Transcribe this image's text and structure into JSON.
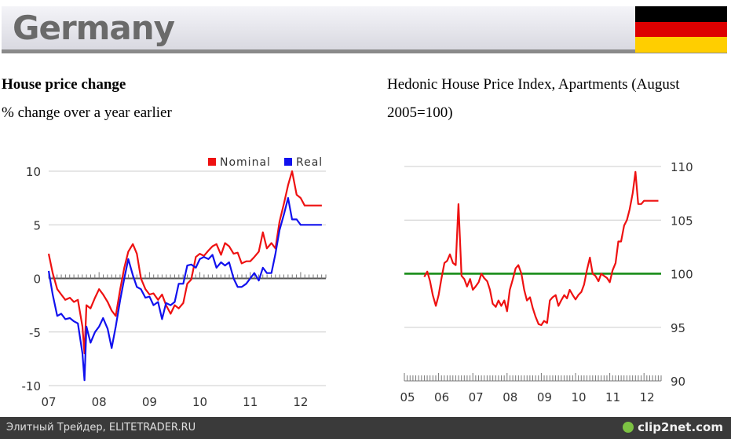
{
  "header": {
    "title": "Germany"
  },
  "flag_colors": [
    "#000000",
    "#dd0000",
    "#ffce00"
  ],
  "left_panel": {
    "title": "House price change",
    "subtitle": "% change over a year earlier"
  },
  "right_panel": {
    "title_line1": "Hedonic House Price Index, Apartments (August",
    "title_line2": "2005=100)"
  },
  "footer": {
    "text": "Элитный Трейдер, ELITETRADER.RU",
    "logo": "clip2net.com"
  },
  "chart_data": [
    {
      "type": "line",
      "x_tick_labels": [
        "07",
        "08",
        "09",
        "10",
        "11",
        "12"
      ],
      "y_ticks": [
        10,
        5,
        0,
        -5,
        -10
      ],
      "ylim": [
        -10,
        10
      ],
      "xlim": [
        2007.0,
        2012.5
      ],
      "grid": true,
      "legend_position": "top-right",
      "series": [
        {
          "name": "Nominal",
          "color": "#ee1111",
          "x": [
            2007.0,
            2007.08,
            2007.17,
            2007.25,
            2007.33,
            2007.42,
            2007.5,
            2007.58,
            2007.67,
            2007.71,
            2007.75,
            2007.83,
            2007.92,
            2008.0,
            2008.08,
            2008.17,
            2008.25,
            2008.33,
            2008.42,
            2008.5,
            2008.58,
            2008.67,
            2008.75,
            2008.83,
            2008.92,
            2009.0,
            2009.08,
            2009.17,
            2009.25,
            2009.33,
            2009.42,
            2009.5,
            2009.58,
            2009.67,
            2009.75,
            2009.83,
            2009.92,
            2010.0,
            2010.08,
            2010.17,
            2010.25,
            2010.33,
            2010.42,
            2010.5,
            2010.58,
            2010.67,
            2010.75,
            2010.83,
            2010.92,
            2011.0,
            2011.08,
            2011.17,
            2011.25,
            2011.33,
            2011.42,
            2011.5,
            2011.58,
            2011.67,
            2011.75,
            2011.83,
            2011.92,
            2012.0,
            2012.08,
            2012.17,
            2012.25,
            2012.33,
            2012.42
          ],
          "values": [
            2.3,
            0.5,
            -1,
            -1.5,
            -2,
            -1.8,
            -2.2,
            -2,
            -4.5,
            -7,
            -2.5,
            -2.8,
            -1.8,
            -1,
            -1.5,
            -2.2,
            -3,
            -3.5,
            -1,
            1,
            2.5,
            3.2,
            2.3,
            0,
            -1,
            -1.5,
            -1.4,
            -2,
            -1.5,
            -2.5,
            -3.3,
            -2.5,
            -2.8,
            -2.3,
            -0.5,
            -0.1,
            2,
            2.3,
            2.1,
            2.6,
            3,
            3.2,
            2.2,
            3.3,
            3,
            2.3,
            2.4,
            1.4,
            1.6,
            1.6,
            2,
            2.5,
            4.3,
            2.8,
            3.3,
            2.8,
            5.3,
            7,
            8.7,
            10,
            7.8,
            7.5,
            6.8,
            6.8,
            6.8,
            6.8,
            6.8
          ]
        },
        {
          "name": "Real",
          "color": "#1111ee",
          "x": [
            2007.0,
            2007.08,
            2007.17,
            2007.25,
            2007.33,
            2007.42,
            2007.5,
            2007.58,
            2007.67,
            2007.71,
            2007.75,
            2007.83,
            2007.92,
            2008.0,
            2008.08,
            2008.17,
            2008.25,
            2008.33,
            2008.42,
            2008.5,
            2008.58,
            2008.67,
            2008.75,
            2008.83,
            2008.92,
            2009.0,
            2009.08,
            2009.17,
            2009.25,
            2009.33,
            2009.42,
            2009.5,
            2009.58,
            2009.67,
            2009.75,
            2009.83,
            2009.92,
            2010.0,
            2010.08,
            2010.17,
            2010.25,
            2010.33,
            2010.42,
            2010.5,
            2010.58,
            2010.67,
            2010.75,
            2010.83,
            2010.92,
            2011.0,
            2011.08,
            2011.17,
            2011.25,
            2011.33,
            2011.42,
            2011.5,
            2011.58,
            2011.67,
            2011.75,
            2011.83,
            2011.92,
            2012.0,
            2012.08,
            2012.17,
            2012.25,
            2012.33,
            2012.42
          ],
          "values": [
            0.7,
            -1.5,
            -3.5,
            -3.3,
            -3.8,
            -3.7,
            -4,
            -4.2,
            -7,
            -9.5,
            -4.5,
            -6,
            -5,
            -4.5,
            -3.7,
            -4.7,
            -6.5,
            -4.5,
            -2,
            0,
            1.8,
            0.3,
            -0.8,
            -1,
            -1.8,
            -1.7,
            -2.5,
            -2.2,
            -3.8,
            -2.3,
            -2.5,
            -2.2,
            -0.5,
            -0.5,
            1.2,
            1.3,
            1,
            1.8,
            2,
            1.8,
            2.2,
            1,
            1.5,
            1.2,
            1.5,
            0,
            -0.8,
            -0.8,
            -0.5,
            0,
            0.5,
            -0.2,
            1,
            0.5,
            0.5,
            2.3,
            4.5,
            6,
            7.5,
            5.5,
            5.5,
            5,
            5,
            5,
            5,
            5,
            5
          ]
        }
      ]
    },
    {
      "type": "line",
      "x_tick_labels": [
        "05",
        "06",
        "07",
        "08",
        "09",
        "10",
        "11",
        "12"
      ],
      "y_ticks": [
        110,
        105,
        100,
        95,
        90
      ],
      "ylim": [
        90,
        110
      ],
      "xlim": [
        2005.0,
        2012.5
      ],
      "grid": true,
      "reference_line": {
        "value": 100,
        "color": "#118811"
      },
      "series": [
        {
          "color": "#ee1111",
          "x": [
            2005.58,
            2005.67,
            2005.75,
            2005.83,
            2005.92,
            2006.0,
            2006.08,
            2006.17,
            2006.25,
            2006.33,
            2006.42,
            2006.5,
            2006.58,
            2006.67,
            2006.75,
            2006.83,
            2006.92,
            2007.0,
            2007.08,
            2007.17,
            2007.25,
            2007.33,
            2007.42,
            2007.5,
            2007.58,
            2007.67,
            2007.75,
            2007.83,
            2007.92,
            2008.0,
            2008.08,
            2008.17,
            2008.25,
            2008.33,
            2008.42,
            2008.5,
            2008.58,
            2008.67,
            2008.75,
            2008.83,
            2008.92,
            2009.0,
            2009.08,
            2009.17,
            2009.25,
            2009.33,
            2009.42,
            2009.5,
            2009.58,
            2009.67,
            2009.75,
            2009.83,
            2009.92,
            2010.0,
            2010.08,
            2010.17,
            2010.25,
            2010.33,
            2010.42,
            2010.5,
            2010.58,
            2010.67,
            2010.75,
            2010.83,
            2010.92,
            2011.0,
            2011.08,
            2011.17,
            2011.25,
            2011.33,
            2011.42,
            2011.5,
            2011.58,
            2011.67,
            2011.75,
            2011.83,
            2011.92,
            2012.0,
            2012.08,
            2012.17,
            2012.25,
            2012.33,
            2012.42
          ],
          "values": [
            99.7,
            100.2,
            99.3,
            98,
            97,
            98,
            99.5,
            101,
            101.2,
            101.8,
            101,
            100.8,
            106.5,
            99.8,
            99.5,
            98.8,
            99.5,
            98.5,
            98.8,
            99.2,
            100,
            99.6,
            99.3,
            98.5,
            97.2,
            96.9,
            97.5,
            97,
            97.5,
            96.5,
            98.5,
            99.5,
            100.5,
            100.8,
            100,
            98.5,
            97.5,
            97.8,
            96.8,
            96,
            95.3,
            95.2,
            95.6,
            95.4,
            97.5,
            97.8,
            98,
            97,
            97.5,
            98,
            97.7,
            98.5,
            98,
            97.6,
            98,
            98.3,
            99,
            100.3,
            101.5,
            100,
            99.8,
            99.3,
            100,
            99.8,
            99.6,
            99.2,
            100.3,
            101,
            103,
            103,
            104.5,
            105,
            106,
            107.5,
            109.5,
            106.5,
            106.5,
            106.8,
            106.8,
            106.8,
            106.8,
            106.8,
            106.8
          ]
        }
      ]
    }
  ]
}
